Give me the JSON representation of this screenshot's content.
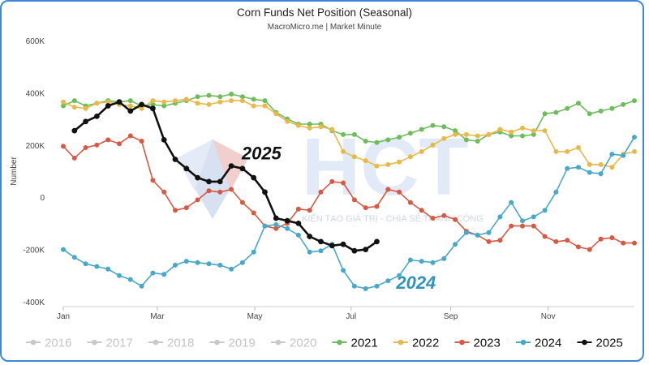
{
  "chart_data": {
    "type": "line",
    "title": "Corn Funds Net Position (Seasonal)",
    "subtitle": "MacroMicro.me | Market Minute",
    "ylabel": "Number",
    "xlabel": "",
    "ylim": [
      -400000,
      600000
    ],
    "yticks": [
      {
        "value": 600000,
        "label": "600K"
      },
      {
        "value": 400000,
        "label": "400K"
      },
      {
        "value": 200000,
        "label": "200K"
      },
      {
        "value": 0,
        "label": "0"
      },
      {
        "value": -200000,
        "label": "-200K"
      },
      {
        "value": -400000,
        "label": "-400K"
      }
    ],
    "xticks": [
      {
        "label": "Jan",
        "week": 0
      },
      {
        "label": "Mar",
        "week": 8.4
      },
      {
        "label": "May",
        "week": 17.1
      },
      {
        "label": "Jul",
        "week": 25.7
      },
      {
        "label": "Sep",
        "week": 34.6
      },
      {
        "label": "Nov",
        "week": 43.3
      }
    ],
    "x_weeks_range": [
      0,
      51
    ],
    "grid": false,
    "legend_position": "bottom",
    "annotations": [
      {
        "text": "2025",
        "week": 17.7,
        "y": 145000,
        "color": "#111111"
      },
      {
        "text": "2024",
        "week": 31.5,
        "y": -350000,
        "color": "#2f93bd"
      }
    ],
    "watermark": "KIẾN TẠO GIÁ TRỊ - CHIA SẺ THÀNH CÔNG",
    "series": [
      {
        "name": "2016",
        "color": "#c8c8c8",
        "visible": false,
        "values": []
      },
      {
        "name": "2017",
        "color": "#c8c8c8",
        "visible": false,
        "values": []
      },
      {
        "name": "2018",
        "color": "#c8c8c8",
        "visible": false,
        "values": []
      },
      {
        "name": "2019",
        "color": "#c8c8c8",
        "visible": false,
        "values": []
      },
      {
        "name": "2020",
        "color": "#c8c8c8",
        "visible": false,
        "values": []
      },
      {
        "name": "2021",
        "color": "#6dbd5e",
        "visible": true,
        "start_week": 0,
        "values": [
          350000,
          370000,
          350000,
          360000,
          370000,
          365000,
          370000,
          350000,
          355000,
          350000,
          360000,
          370000,
          385000,
          390000,
          385000,
          395000,
          385000,
          375000,
          370000,
          325000,
          300000,
          280000,
          280000,
          280000,
          255000,
          240000,
          240000,
          215000,
          210000,
          220000,
          230000,
          245000,
          260000,
          275000,
          270000,
          255000,
          220000,
          215000,
          240000,
          250000,
          235000,
          235000,
          240000,
          320000,
          325000,
          340000,
          360000,
          320000,
          330000,
          340000,
          355000,
          370000
        ]
      },
      {
        "name": "2022",
        "color": "#e8b94a",
        "visible": true,
        "start_week": 0,
        "values": [
          365000,
          345000,
          340000,
          360000,
          365000,
          355000,
          350000,
          340000,
          370000,
          365000,
          370000,
          375000,
          360000,
          355000,
          365000,
          370000,
          370000,
          350000,
          350000,
          320000,
          290000,
          275000,
          265000,
          270000,
          260000,
          175000,
          155000,
          140000,
          120000,
          125000,
          135000,
          155000,
          175000,
          200000,
          225000,
          240000,
          240000,
          235000,
          240000,
          260000,
          250000,
          265000,
          255000,
          255000,
          175000,
          175000,
          190000,
          125000,
          125000,
          115000,
          165000,
          175000
        ]
      },
      {
        "name": "2023",
        "color": "#d45a45",
        "visible": true,
        "start_week": 0,
        "values": [
          195000,
          150000,
          190000,
          200000,
          220000,
          205000,
          235000,
          215000,
          65000,
          20000,
          -50000,
          -40000,
          -10000,
          25000,
          20000,
          30000,
          -20000,
          -60000,
          -110000,
          -120000,
          -100000,
          -45000,
          -50000,
          20000,
          60000,
          55000,
          -10000,
          -40000,
          -35000,
          30000,
          20000,
          -20000,
          -50000,
          -80000,
          -70000,
          -85000,
          -130000,
          -145000,
          -170000,
          -165000,
          -110000,
          -110000,
          -110000,
          -150000,
          -170000,
          -165000,
          -190000,
          -200000,
          -160000,
          -155000,
          -175000,
          -175000
        ]
      },
      {
        "name": "2024",
        "color": "#48a8c8",
        "visible": true,
        "start_week": 0,
        "values": [
          -200000,
          -230000,
          -255000,
          -265000,
          -275000,
          -300000,
          -315000,
          -340000,
          -290000,
          -295000,
          -260000,
          -245000,
          -250000,
          -255000,
          -260000,
          -275000,
          -250000,
          -210000,
          -110000,
          -105000,
          -120000,
          -145000,
          -210000,
          -205000,
          -180000,
          -280000,
          -340000,
          -350000,
          -340000,
          -320000,
          -300000,
          -240000,
          -245000,
          -250000,
          -235000,
          -180000,
          -135000,
          -145000,
          -135000,
          -75000,
          -20000,
          -90000,
          -75000,
          -50000,
          20000,
          110000,
          115000,
          95000,
          90000,
          165000,
          160000,
          230000
        ]
      },
      {
        "name": "2025",
        "color": "#111111",
        "visible": true,
        "start_week": 1,
        "values": [
          255000,
          290000,
          310000,
          350000,
          365000,
          330000,
          355000,
          340000,
          220000,
          145000,
          110000,
          75000,
          60000,
          60000,
          120000,
          110000,
          75000,
          20000,
          -80000,
          -90000,
          -100000,
          -150000,
          -170000,
          -185000,
          -180000,
          -205000,
          -200000,
          -170000
        ]
      }
    ]
  }
}
